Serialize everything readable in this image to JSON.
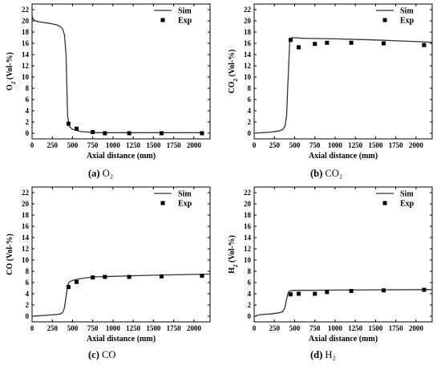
{
  "chart_data": [
    {
      "type": "line",
      "ylabel_parts": [
        "O",
        "2",
        " (Vol-%)"
      ],
      "xlabel": "Axial distance (mm)",
      "xlim": [
        0,
        2200
      ],
      "ylim": [
        -1,
        23
      ],
      "xticks": [
        0,
        250,
        500,
        750,
        1000,
        1250,
        1500,
        1750,
        2000
      ],
      "yticks": [
        0,
        2,
        4,
        6,
        8,
        10,
        12,
        14,
        16,
        18,
        20,
        22
      ],
      "legend_position": "top-right",
      "caption": {
        "tag": "(a)",
        "text": "O₂"
      },
      "series": [
        {
          "name": "Sim",
          "style": "line",
          "x": [
            0,
            10,
            30,
            60,
            100,
            200,
            300,
            350,
            380,
            400,
            420,
            430,
            440,
            460,
            500,
            600,
            800,
            1000,
            1500,
            2100
          ],
          "y": [
            21.0,
            20.4,
            20.1,
            19.9,
            19.8,
            19.6,
            19.3,
            19.0,
            18.5,
            17.5,
            14.0,
            8.0,
            3.0,
            1.2,
            0.7,
            0.3,
            0.1,
            0.1,
            0.1,
            0.1
          ]
        },
        {
          "name": "Exp",
          "style": "marker",
          "x": [
            450,
            550,
            750,
            900,
            1200,
            1600,
            2100
          ],
          "y": [
            1.7,
            0.8,
            0.2,
            0.0,
            0.0,
            0.0,
            0.0
          ]
        }
      ]
    },
    {
      "type": "line",
      "ylabel_parts": [
        "CO",
        "2",
        " (Vol-%)"
      ],
      "xlabel": "Axial distance (mm)",
      "xlim": [
        0,
        2200
      ],
      "ylim": [
        -1,
        23
      ],
      "xticks": [
        0,
        250,
        500,
        750,
        1000,
        1250,
        1500,
        1750,
        2000
      ],
      "yticks": [
        0,
        2,
        4,
        6,
        8,
        10,
        12,
        14,
        16,
        18,
        20,
        22
      ],
      "legend_position": "top-right",
      "caption": {
        "tag": "(b)",
        "text": "CO₂"
      },
      "series": [
        {
          "name": "Sim",
          "style": "line",
          "x": [
            0,
            100,
            200,
            300,
            350,
            380,
            400,
            420,
            440,
            460,
            500,
            600,
            1000,
            1500,
            2200
          ],
          "y": [
            0.0,
            0.1,
            0.2,
            0.4,
            0.6,
            1.2,
            3.0,
            10.0,
            16.5,
            17.0,
            17.0,
            16.9,
            16.8,
            16.6,
            16.2
          ]
        },
        {
          "name": "Exp",
          "style": "marker",
          "x": [
            450,
            550,
            750,
            900,
            1200,
            1600,
            2100
          ],
          "y": [
            16.6,
            15.3,
            15.9,
            16.1,
            16.1,
            16.0,
            15.7
          ]
        }
      ]
    },
    {
      "type": "line",
      "ylabel_parts": [
        "CO (Vol-%)"
      ],
      "xlabel": "Axial distance (mm)",
      "xlim": [
        0,
        2200
      ],
      "ylim": [
        -1,
        23
      ],
      "xticks": [
        0,
        250,
        500,
        750,
        1000,
        1250,
        1500,
        1750,
        2000
      ],
      "yticks": [
        0,
        2,
        4,
        6,
        8,
        10,
        12,
        14,
        16,
        18,
        20,
        22
      ],
      "legend_position": "top-right",
      "caption": {
        "tag": "(c)",
        "text": "CO"
      },
      "series": [
        {
          "name": "Sim",
          "style": "line",
          "x": [
            0,
            100,
            200,
            300,
            350,
            380,
            400,
            420,
            440,
            460,
            500,
            600,
            750,
            1000,
            1500,
            2200
          ],
          "y": [
            0.0,
            0.1,
            0.2,
            0.3,
            0.4,
            0.7,
            1.5,
            3.5,
            5.5,
            6.1,
            6.4,
            6.7,
            7.0,
            7.1,
            7.3,
            7.5
          ]
        },
        {
          "name": "Exp",
          "style": "marker",
          "x": [
            450,
            550,
            750,
            900,
            1200,
            1600,
            2100
          ],
          "y": [
            5.2,
            6.1,
            6.9,
            7.0,
            7.0,
            7.1,
            7.2
          ]
        }
      ]
    },
    {
      "type": "line",
      "ylabel_parts": [
        "H",
        "2",
        " (Vol-%)"
      ],
      "xlabel": "Axial distance (mm)",
      "xlim": [
        0,
        2200
      ],
      "ylim": [
        -1,
        23
      ],
      "xticks": [
        0,
        250,
        500,
        750,
        1000,
        1250,
        1500,
        1750,
        2000
      ],
      "yticks": [
        0,
        2,
        4,
        6,
        8,
        10,
        12,
        14,
        16,
        18,
        20,
        22
      ],
      "legend_position": "top-right",
      "caption": {
        "tag": "(d)",
        "text": "H₂"
      },
      "series": [
        {
          "name": "Sim",
          "style": "line",
          "x": [
            0,
            50,
            100,
            200,
            300,
            350,
            380,
            400,
            420,
            440,
            460,
            500,
            1000,
            1500,
            2200
          ],
          "y": [
            0.0,
            0.2,
            0.3,
            0.4,
            0.6,
            0.8,
            1.5,
            3.0,
            4.2,
            4.5,
            4.55,
            4.6,
            4.65,
            4.7,
            4.75
          ]
        },
        {
          "name": "Exp",
          "style": "marker",
          "x": [
            450,
            550,
            750,
            900,
            1200,
            1600,
            2100
          ],
          "y": [
            3.9,
            4.0,
            4.0,
            4.3,
            4.5,
            4.6,
            4.7
          ]
        }
      ]
    }
  ]
}
